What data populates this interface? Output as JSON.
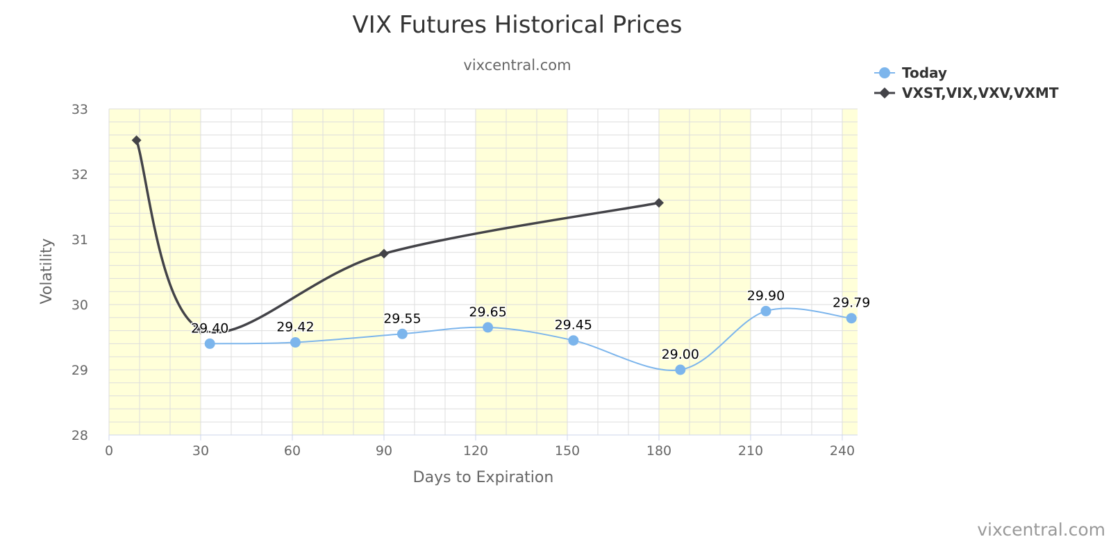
{
  "chart_data": {
    "type": "line",
    "title": "VIX Futures Historical Prices",
    "subtitle": "vixcentral.com",
    "xlabel": "Days to Expiration",
    "ylabel": "Volatility",
    "xlim": [
      0,
      245
    ],
    "ylim": [
      28,
      33
    ],
    "x_ticks": [
      0,
      30,
      60,
      90,
      120,
      150,
      180,
      210,
      240
    ],
    "y_ticks": [
      28,
      29,
      30,
      31,
      32,
      33
    ],
    "x_minor_step": 10,
    "y_minor_step": 0.2,
    "grid": true,
    "shaded_bands": [
      [
        0,
        30
      ],
      [
        60,
        90
      ],
      [
        120,
        150
      ],
      [
        180,
        210
      ],
      [
        240,
        245
      ]
    ],
    "legend_position": "top-right",
    "series": [
      {
        "name": "Today",
        "color": "#7cb5ec",
        "marker": "circle",
        "x": [
          33,
          61,
          96,
          124,
          152,
          187,
          215,
          243
        ],
        "y": [
          29.4,
          29.42,
          29.55,
          29.65,
          29.45,
          29.0,
          29.9,
          29.79
        ],
        "labels": [
          "29.40",
          "29.42",
          "29.55",
          "29.65",
          "29.45",
          "29.00",
          "29.90",
          "29.79"
        ]
      },
      {
        "name": "VXST,VIX,VXV,VXMT",
        "color": "#434348",
        "marker": "diamond",
        "x": [
          9,
          30,
          90,
          180
        ],
        "y": [
          32.52,
          29.62,
          30.78,
          31.56
        ]
      }
    ],
    "credits": "vixcentral.com",
    "band_color": "#ffffd9",
    "grid_color": "#dddddd"
  }
}
